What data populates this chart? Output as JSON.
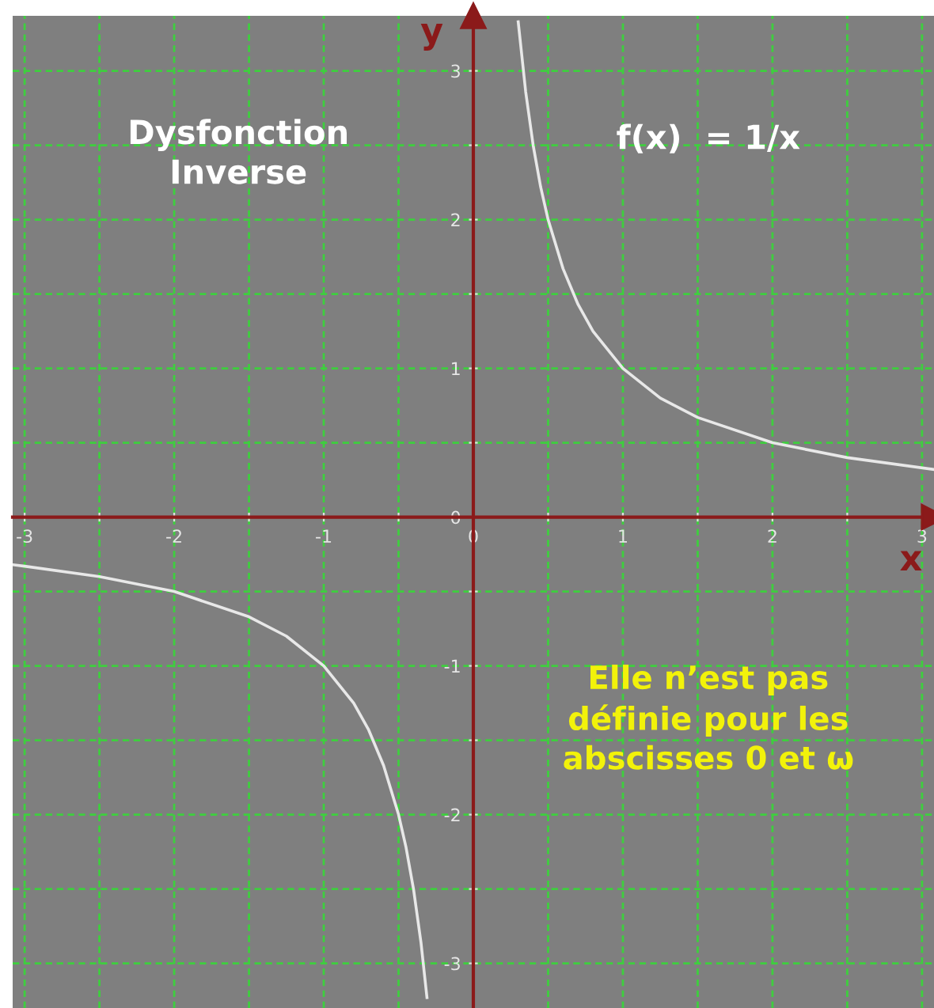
{
  "chart_data": {
    "type": "line",
    "title": "Dysfonction\nInverse",
    "xlabel": "x",
    "ylabel": "y",
    "annotations": [
      "f(x)  = 1/x",
      "Elle n’est pas\ndéfinie pour les\nabscisses 0 et ω"
    ],
    "series": [
      {
        "color": "#e8e8e8",
        "x": [
          0.3,
          0.35,
          0.4,
          0.45,
          0.5,
          0.6,
          0.7,
          0.8,
          1,
          1.25,
          1.5,
          2,
          2.5,
          3.08
        ],
        "values": [
          3.33,
          2.86,
          2.5,
          2.22,
          2,
          1.67,
          1.43,
          1.25,
          1,
          0.8,
          0.67,
          0.5,
          0.4,
          0.32
        ]
      },
      {
        "color": "#e8e8e8",
        "x": [
          -3.08,
          -3,
          -2.5,
          -2,
          -1.5,
          -1.25,
          -1,
          -0.8,
          -0.7,
          -0.6,
          -0.5,
          -0.45,
          -0.4,
          -0.35,
          -0.31
        ],
        "values": [
          -0.32,
          -0.33,
          -0.4,
          -0.5,
          -0.67,
          -0.8,
          -1,
          -1.25,
          -1.43,
          -1.67,
          -2,
          -2.22,
          -2.5,
          -2.86,
          -3.23
        ]
      }
    ],
    "xlim": [
      -3.08,
      3.08
    ],
    "ylim": [
      -3.3,
      3.37
    ],
    "xticks": [
      -3,
      {
        "value": -2.5,
        "label": null
      },
      -2,
      {
        "value": -1.5,
        "label": null
      },
      -1,
      {
        "value": -0.5,
        "label": null
      },
      0,
      {
        "value": 0.5,
        "label": null
      },
      1,
      {
        "value": 1.5,
        "label": null
      },
      2,
      {
        "value": 2.5,
        "label": null
      },
      3
    ],
    "yticks": [
      -3,
      {
        "value": -2.5,
        "label": null
      },
      -2,
      {
        "value": -1.5,
        "label": null
      },
      -1,
      {
        "value": -0.5,
        "label": null
      },
      0,
      {
        "value": 0.5,
        "label": null
      },
      1,
      {
        "value": 1.5,
        "label": null
      },
      2,
      {
        "value": 2.5,
        "label": null
      },
      3
    ],
    "grid": true,
    "line_style": "solid",
    "marker": "none"
  }
}
